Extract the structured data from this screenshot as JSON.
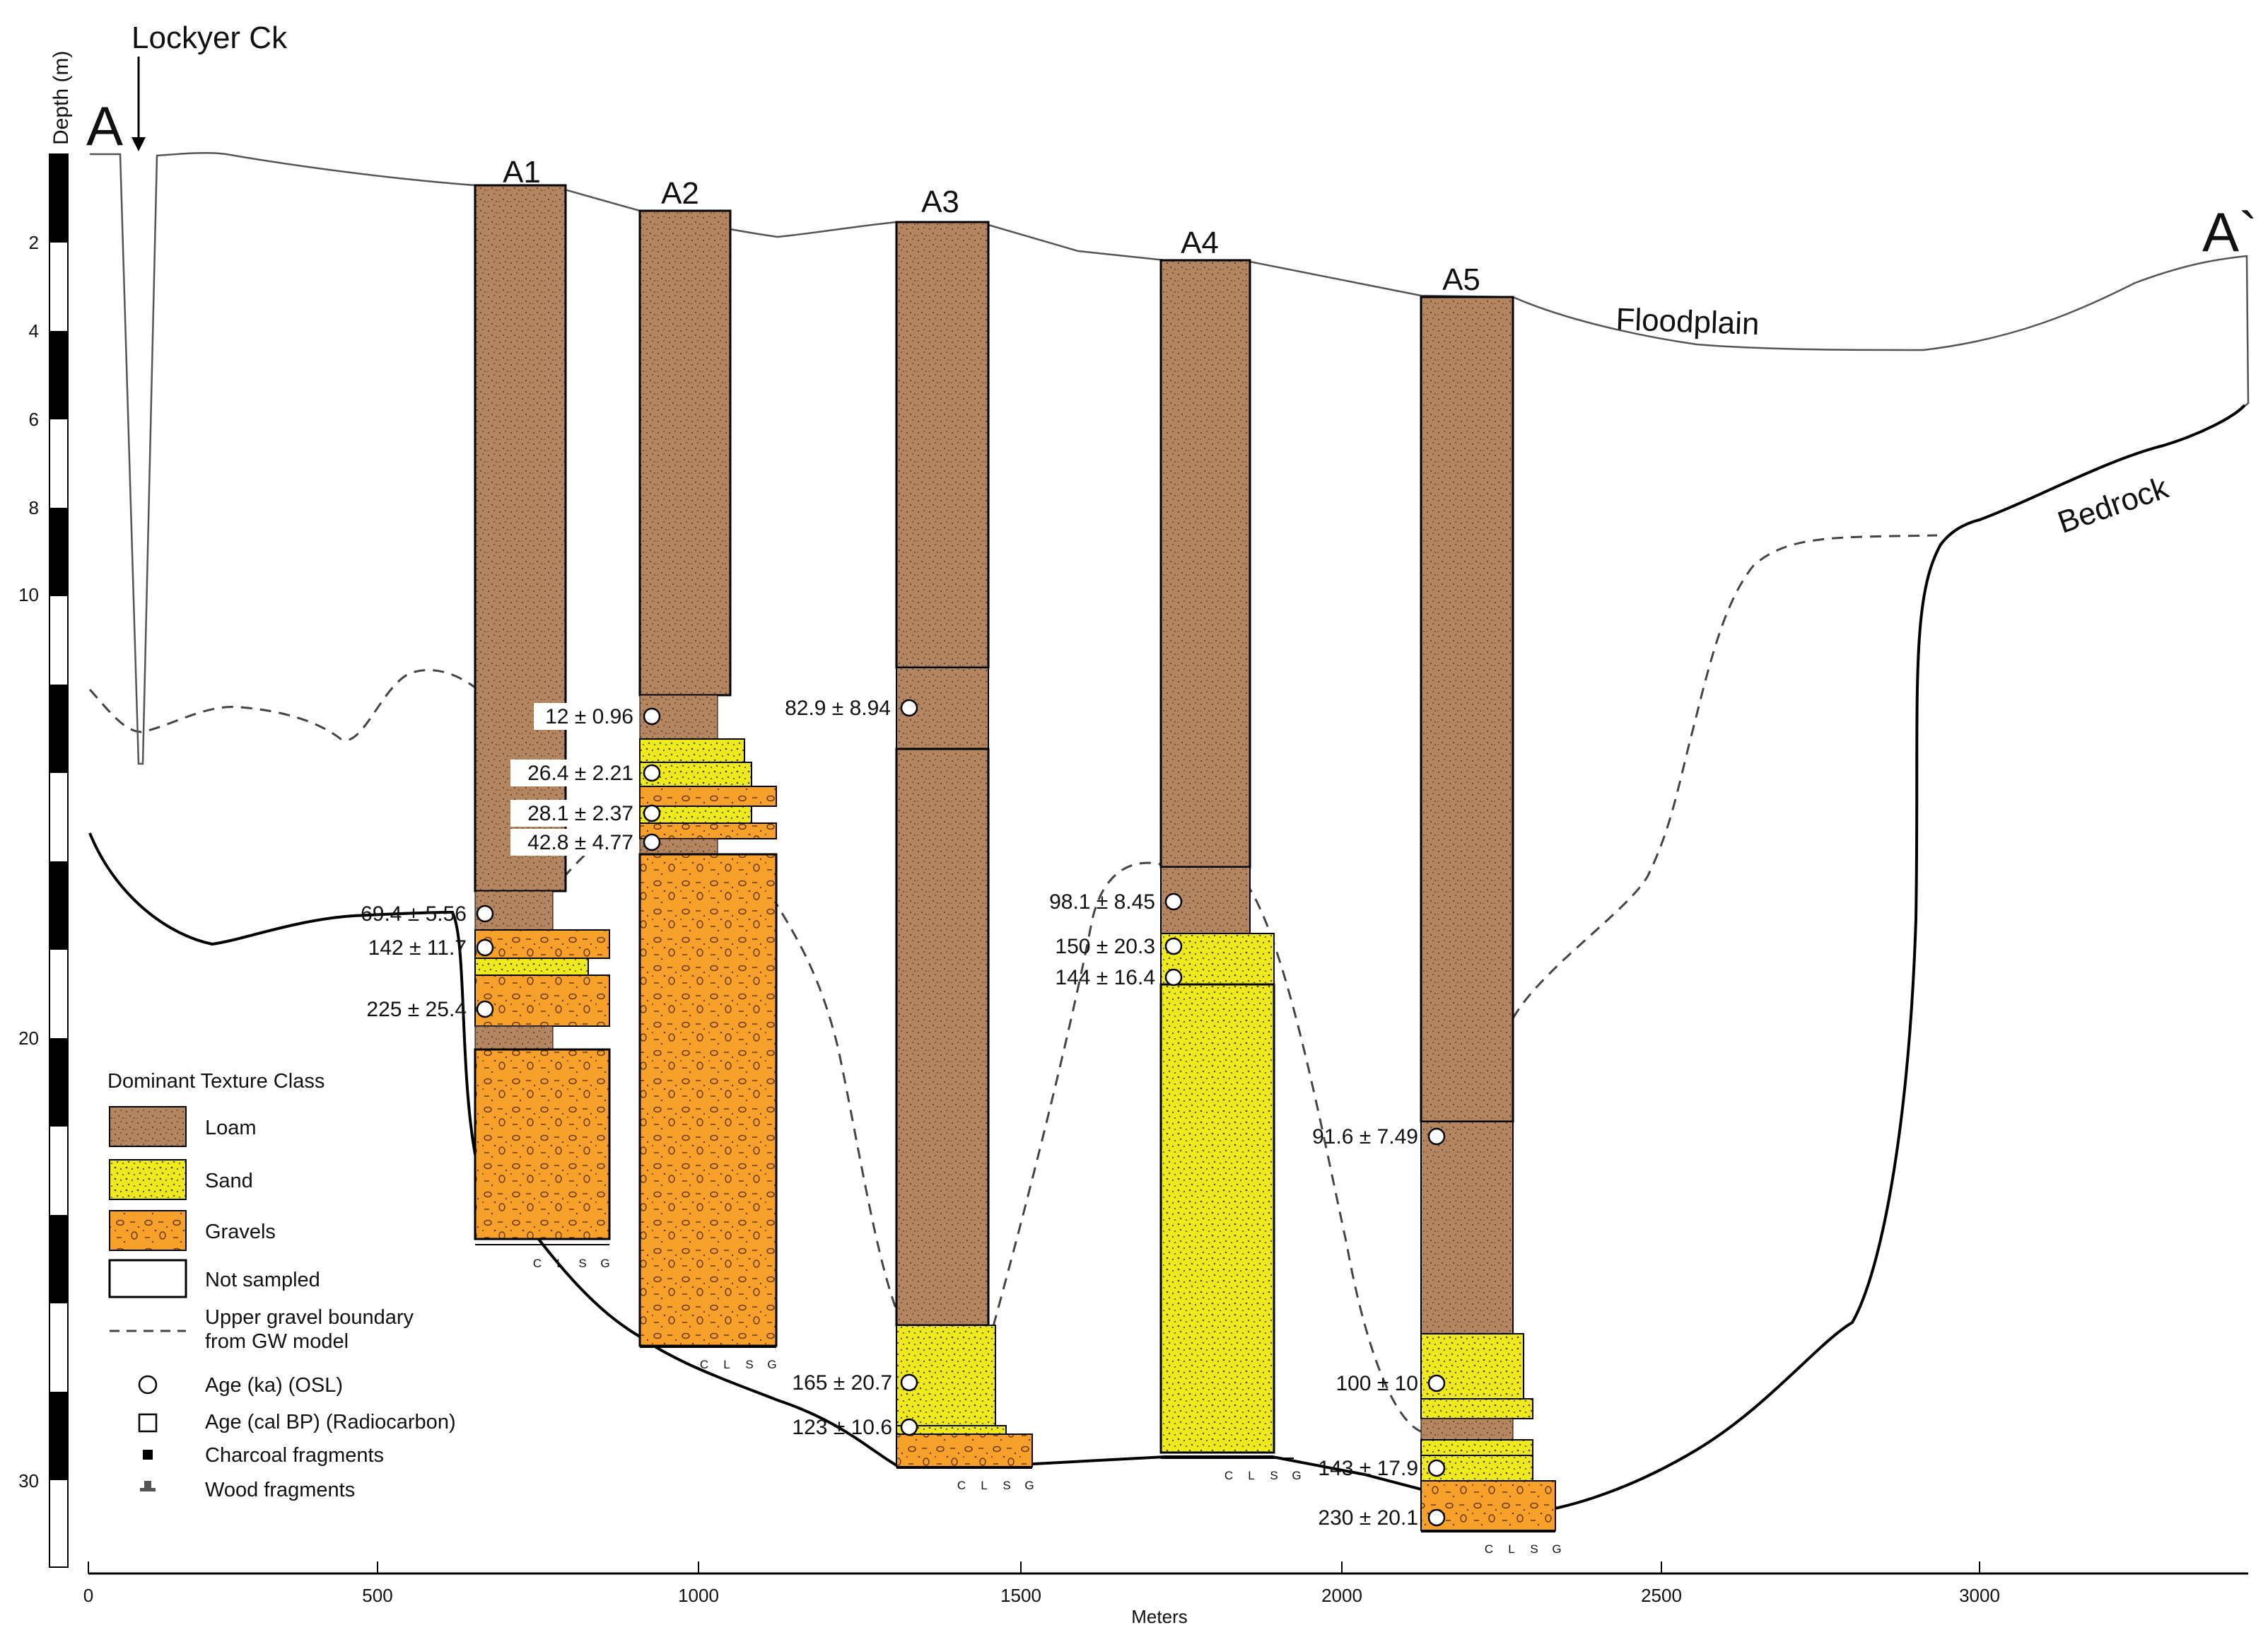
{
  "labels": {
    "start": "A",
    "end": "A`",
    "creek": "Lockyer Ck",
    "depth_axis": "Depth (m)",
    "meters_axis": "Meters",
    "floodplain": "Floodplain",
    "bedrock": "Bedrock"
  },
  "colors": {
    "loam": "#b38560",
    "sand": "#f0ea1c",
    "gravel": "#f7a12a"
  },
  "depth_ticks": [
    "2",
    "4",
    "6",
    "8",
    "10",
    "20",
    "30"
  ],
  "x_ticks": [
    "0",
    "500",
    "1000",
    "1500",
    "2000",
    "2500",
    "3000"
  ],
  "texture_scale": [
    "C",
    "L",
    "S",
    "G"
  ],
  "cores": [
    {
      "id": "A1",
      "ages": [
        "69.4 ± 5.56",
        "142 ± 11.7",
        "225 ± 25.4"
      ]
    },
    {
      "id": "A2",
      "ages": [
        "12 ± 0.96",
        "26.4 ± 2.21",
        "28.1 ± 2.37",
        "42.8 ± 4.77"
      ]
    },
    {
      "id": "A3",
      "ages": [
        "82.9 ± 8.94",
        "165 ± 20.7",
        "123 ± 10.6"
      ]
    },
    {
      "id": "A4",
      "ages": [
        "98.1 ± 8.45",
        "150 ± 20.3",
        "144 ± 16.4"
      ]
    },
    {
      "id": "A5",
      "ages": [
        "91.6 ± 7.49",
        "100 ± 10",
        "143 ± 17.9",
        "230 ± 20.1"
      ]
    }
  ],
  "legend": {
    "title": "Dominant Texture Class",
    "loam": "Loam",
    "sand": "Sand",
    "gravels": "Gravels",
    "not_sampled": "Not sampled",
    "gw_line1": "Upper gravel boundary",
    "gw_line2": "from GW model",
    "osl": "Age (ka) (OSL)",
    "radiocarbon": "Age (cal BP) (Radiocarbon)",
    "charcoal": "Charcoal fragments",
    "wood": "Wood fragments"
  }
}
